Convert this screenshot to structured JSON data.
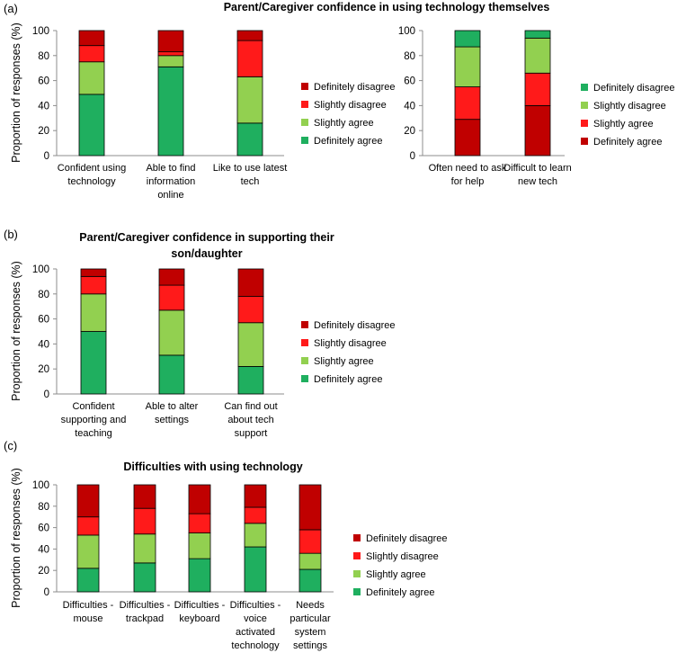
{
  "colors": {
    "definitely_agree": "#1faf5f",
    "slightly_agree": "#92d050",
    "slightly_disagree": "#ff1a1a",
    "definitely_disagree": "#c00000",
    "edge": "#000000"
  },
  "chart_data": [
    {
      "panel_label": "(a)",
      "type": "bar",
      "stacked": true,
      "title": "Parent/Caregiver confidence in using technology themselves",
      "ylabel": "Proportion of responses (%)",
      "ylim": [
        0,
        100
      ],
      "yticks": [
        "0",
        "20",
        "40",
        "60",
        "80",
        "100"
      ],
      "categories": [
        [
          "Confident using",
          "technology"
        ],
        [
          "Able to find",
          "information",
          "online"
        ],
        [
          "Like to use latest",
          "tech"
        ]
      ],
      "series": [
        {
          "name": "Definitely agree",
          "color_key": "definitely_agree",
          "values": [
            49,
            71,
            26
          ]
        },
        {
          "name": "Slightly agree",
          "color_key": "slightly_agree",
          "values": [
            26,
            9,
            37
          ]
        },
        {
          "name": "Slightly disagree",
          "color_key": "slightly_disagree",
          "values": [
            13,
            3,
            29
          ]
        },
        {
          "name": "Definitely disagree",
          "color_key": "definitely_disagree",
          "values": [
            12,
            17,
            8
          ]
        }
      ],
      "legend_position": "right"
    },
    {
      "panel_label": "",
      "type": "bar",
      "stacked": true,
      "title": "",
      "ylabel": "",
      "ylim": [
        0,
        100
      ],
      "yticks": [
        "0",
        "20",
        "40",
        "60",
        "80",
        "100"
      ],
      "categories": [
        [
          "Often need to ask",
          "for help"
        ],
        [
          "Difficult to learn",
          "new tech"
        ]
      ],
      "series": [
        {
          "name": "Definitely agree",
          "color_key": "definitely_disagree",
          "values": [
            29,
            40
          ]
        },
        {
          "name": "Slightly agree",
          "color_key": "slightly_disagree",
          "values": [
            26,
            26
          ]
        },
        {
          "name": "Slightly disagree",
          "color_key": "slightly_agree",
          "values": [
            32,
            28
          ]
        },
        {
          "name": "Definitely disagree",
          "color_key": "definitely_agree",
          "values": [
            13,
            6
          ]
        }
      ],
      "legend_position": "right"
    },
    {
      "panel_label": "(b)",
      "type": "bar",
      "stacked": true,
      "title": "Parent/Caregiver confidence in supporting their son/daughter",
      "title_lines": [
        "Parent/Caregiver confidence in supporting their",
        "son/daughter"
      ],
      "ylabel": "Proportion of responses (%)",
      "ylim": [
        0,
        100
      ],
      "yticks": [
        "0",
        "20",
        "40",
        "60",
        "80",
        "100"
      ],
      "categories": [
        [
          "Confident",
          "supporting and",
          "teaching"
        ],
        [
          "Able to alter",
          "settings"
        ],
        [
          "Can find out",
          "about tech",
          "support"
        ]
      ],
      "series": [
        {
          "name": "Definitely agree",
          "color_key": "definitely_agree",
          "values": [
            50,
            31,
            22
          ]
        },
        {
          "name": "Slightly agree",
          "color_key": "slightly_agree",
          "values": [
            30,
            36,
            35
          ]
        },
        {
          "name": "Slightly disagree",
          "color_key": "slightly_disagree",
          "values": [
            14,
            20,
            21
          ]
        },
        {
          "name": "Definitely disagree",
          "color_key": "definitely_disagree",
          "values": [
            6,
            13,
            22
          ]
        }
      ],
      "legend_position": "right"
    },
    {
      "panel_label": "(c)",
      "type": "bar",
      "stacked": true,
      "title": "Difficulties with using technology",
      "ylabel": "Proportion of responses (%)",
      "ylim": [
        0,
        100
      ],
      "yticks": [
        "0",
        "20",
        "40",
        "60",
        "80",
        "100"
      ],
      "categories": [
        [
          "Difficulties -",
          "mouse"
        ],
        [
          "Difficulties -",
          "trackpad"
        ],
        [
          "Difficulties -",
          "keyboard"
        ],
        [
          "Difficulties -",
          "voice",
          "activated",
          "technology"
        ],
        [
          "Needs",
          "particular",
          "system",
          "settings"
        ]
      ],
      "series": [
        {
          "name": "Definitely agree",
          "color_key": "definitely_agree",
          "values": [
            22,
            27,
            31,
            42,
            21
          ]
        },
        {
          "name": "Slightly agree",
          "color_key": "slightly_agree",
          "values": [
            31,
            27,
            24,
            22,
            15
          ]
        },
        {
          "name": "Slightly disagree",
          "color_key": "slightly_disagree",
          "values": [
            17,
            24,
            18,
            15,
            22
          ]
        },
        {
          "name": "Definitely disagree",
          "color_key": "definitely_disagree",
          "values": [
            30,
            22,
            27,
            21,
            42
          ]
        }
      ],
      "legend_position": "right"
    }
  ]
}
